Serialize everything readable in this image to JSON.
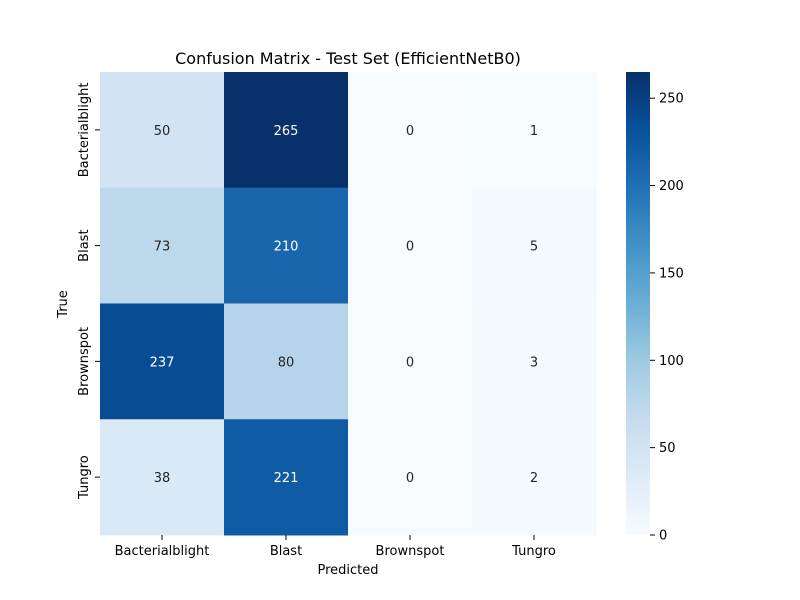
{
  "chart_data": {
    "type": "heatmap",
    "title": "Confusion Matrix - Test Set (EfficientNetB0)",
    "xlabel": "Predicted",
    "ylabel": "True",
    "x_categories": [
      "Bacterialblight",
      "Blast",
      "Brownspot",
      "Tungro"
    ],
    "y_categories": [
      "Bacterialblight",
      "Blast",
      "Brownspot",
      "Tungro"
    ],
    "values": [
      [
        50,
        265,
        0,
        1
      ],
      [
        73,
        210,
        0,
        5
      ],
      [
        237,
        80,
        0,
        3
      ],
      [
        38,
        221,
        0,
        2
      ]
    ],
    "colormap": "Blues",
    "vmin": 0,
    "vmax": 265,
    "colorbar_ticks": [
      0,
      50,
      100,
      150,
      200,
      250
    ],
    "grid": false,
    "annotations": true
  }
}
